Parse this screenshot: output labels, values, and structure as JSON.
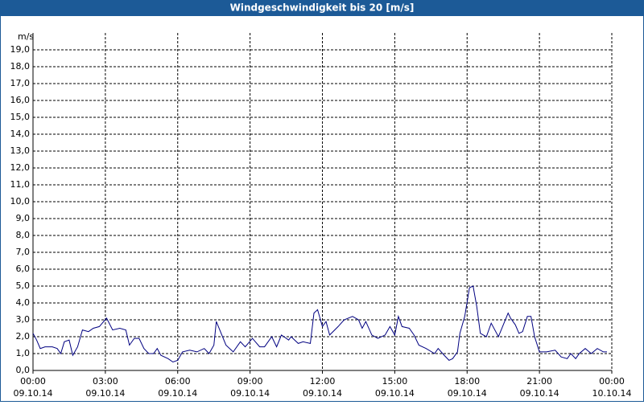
{
  "chart_data": {
    "type": "line",
    "title": "Windgeschwindigkeit bis 20 [m/s]",
    "y_label": "m/s",
    "x": [
      0,
      0.15,
      0.3,
      0.5,
      0.8,
      1.0,
      1.15,
      1.3,
      1.5,
      1.65,
      1.85,
      2.05,
      2.3,
      2.5,
      2.75,
      3.05,
      3.3,
      3.6,
      3.85,
      4.0,
      4.2,
      4.4,
      4.6,
      4.8,
      5.0,
      5.15,
      5.3,
      5.6,
      5.8,
      6.0,
      6.2,
      6.5,
      6.8,
      7.1,
      7.3,
      7.5,
      7.6,
      8.0,
      8.3,
      8.6,
      8.8,
      9.1,
      9.4,
      9.6,
      9.9,
      10.1,
      10.3,
      10.6,
      10.7,
      11.0,
      11.2,
      11.5,
      11.65,
      11.8,
      12.0,
      12.15,
      12.3,
      12.65,
      12.9,
      13.25,
      13.5,
      13.65,
      13.8,
      14.05,
      14.3,
      14.6,
      14.8,
      15.0,
      15.15,
      15.3,
      15.6,
      15.8,
      16.0,
      16.3,
      16.65,
      16.8,
      17.05,
      17.25,
      17.4,
      17.6,
      17.7,
      17.9,
      18.1,
      18.25,
      18.4,
      18.55,
      18.8,
      19.0,
      19.3,
      19.7,
      19.8,
      20.0,
      20.15,
      20.3,
      20.5,
      20.65,
      20.8,
      21.0,
      21.3,
      21.65,
      21.9,
      22.15,
      22.3,
      22.5,
      22.65,
      22.9,
      23.15,
      23.4,
      23.65,
      23.8
    ],
    "series": [
      {
        "name": "Windgeschwindigkeit",
        "color": "#000080",
        "values": [
          2.2,
          1.8,
          1.3,
          1.4,
          1.4,
          1.3,
          1.0,
          1.7,
          1.8,
          0.9,
          1.4,
          2.4,
          2.3,
          2.5,
          2.6,
          3.1,
          2.4,
          2.5,
          2.4,
          1.5,
          1.9,
          1.9,
          1.3,
          1.0,
          1.0,
          1.3,
          0.9,
          0.7,
          0.5,
          0.6,
          1.1,
          1.2,
          1.1,
          1.3,
          1.0,
          1.5,
          2.9,
          1.5,
          1.1,
          1.7,
          1.4,
          1.9,
          1.4,
          1.4,
          2.0,
          1.4,
          2.1,
          1.8,
          2.0,
          1.6,
          1.7,
          1.6,
          3.4,
          3.6,
          2.6,
          2.9,
          2.1,
          2.6,
          3.0,
          3.2,
          3.0,
          2.5,
          2.9,
          2.1,
          1.9,
          2.1,
          2.6,
          2.1,
          3.2,
          2.6,
          2.5,
          2.1,
          1.5,
          1.3,
          1.0,
          1.3,
          0.9,
          0.6,
          0.7,
          1.1,
          2.2,
          3.2,
          4.9,
          5.0,
          3.8,
          2.2,
          2.0,
          2.8,
          2.0,
          3.4,
          3.1,
          2.7,
          2.2,
          2.3,
          3.2,
          3.2,
          2.0,
          1.1,
          1.1,
          1.2,
          0.8,
          0.7,
          1.0,
          0.7,
          1.0,
          1.3,
          1.0,
          1.3,
          1.1,
          1.1
        ]
      }
    ],
    "xlim": [
      0,
      24
    ],
    "xticks": [
      {
        "value": 0,
        "label": [
          "00:00",
          "09.10.14"
        ]
      },
      {
        "value": 3,
        "label": [
          "03:00",
          "09.10.14"
        ]
      },
      {
        "value": 6,
        "label": [
          "06:00",
          "09.10.14"
        ]
      },
      {
        "value": 9,
        "label": [
          "09:00",
          "09.10.14"
        ]
      },
      {
        "value": 12,
        "label": [
          "12:00",
          "09.10.14"
        ]
      },
      {
        "value": 15,
        "label": [
          "15:00",
          "09.10.14"
        ]
      },
      {
        "value": 18,
        "label": [
          "18:00",
          "09.10.14"
        ]
      },
      {
        "value": 21,
        "label": [
          "21:00",
          "09.10.14"
        ]
      },
      {
        "value": 24,
        "label": [
          "00:00",
          "10.10.14"
        ]
      }
    ],
    "ylim": [
      0,
      20
    ],
    "yticks": [
      {
        "value": 0,
        "label": "0,0"
      },
      {
        "value": 1,
        "label": "1,0"
      },
      {
        "value": 2,
        "label": "2,0"
      },
      {
        "value": 3,
        "label": "3,0"
      },
      {
        "value": 4,
        "label": "4,0"
      },
      {
        "value": 5,
        "label": "5,0"
      },
      {
        "value": 6,
        "label": "6,0"
      },
      {
        "value": 7,
        "label": "7,0"
      },
      {
        "value": 8,
        "label": "8,0"
      },
      {
        "value": 9,
        "label": "9,0"
      },
      {
        "value": 10,
        "label": "10,0"
      },
      {
        "value": 11,
        "label": "11,0"
      },
      {
        "value": 12,
        "label": "12,0"
      },
      {
        "value": 13,
        "label": "13,0"
      },
      {
        "value": 14,
        "label": "14,0"
      },
      {
        "value": 15,
        "label": "15,0"
      },
      {
        "value": 16,
        "label": "16,0"
      },
      {
        "value": 17,
        "label": "17,0"
      },
      {
        "value": 18,
        "label": "18,0"
      },
      {
        "value": 19,
        "label": "19,0"
      }
    ],
    "grid": true
  }
}
